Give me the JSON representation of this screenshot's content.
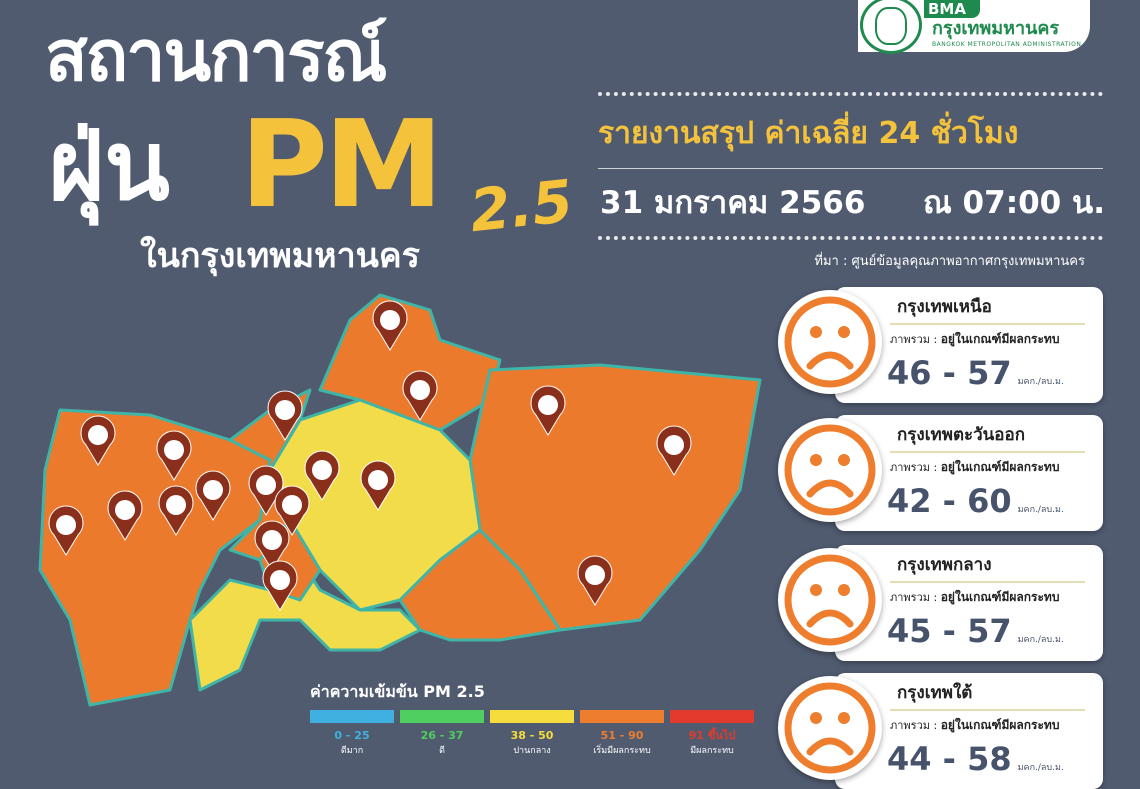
{
  "title": {
    "line1": "สถานการณ์",
    "line2": "ฝุ่น",
    "pm": "PM",
    "pm_sub": "2.5",
    "line3": "ในกรุงเทพมหานคร"
  },
  "logo": {
    "abbr": "BMA",
    "name_th": "กรุงเทพมหานคร",
    "name_en": "BANGKOK METROPOLITAN ADMINISTRATION"
  },
  "report": {
    "subtitle": "รายงานสรุป ค่าเฉลี่ย 24 ชั่วโมง",
    "date": "31 มกราคม 2566",
    "time": "ณ 07:00 น.",
    "source": "ที่มา : ศูนย์ข้อมูลคุณภาพอากาศกรุงเทพมหานคร"
  },
  "colors": {
    "background": "#505b70",
    "accent": "#f5c33b",
    "orange": "#ec7a2c",
    "yellow": "#f3dc4a",
    "border": "#3fb5a8"
  },
  "zones": [
    {
      "name": "กรุงเทพเหนือ",
      "status_label": "ภาพรวม :",
      "status": "อยู่ในเกณฑ์มีผลกระทบ",
      "value": "46 - 57",
      "unit": "มคก./ลบ.ม.",
      "face": "sad-face-icon"
    },
    {
      "name": "กรุงเทพตะวันออก",
      "status_label": "ภาพรวม :",
      "status": "อยู่ในเกณฑ์มีผลกระทบ",
      "value": "42 - 60",
      "unit": "มคก./ลบ.ม.",
      "face": "sad-face-icon"
    },
    {
      "name": "กรุงเทพกลาง",
      "status_label": "ภาพรวม :",
      "status": "อยู่ในเกณฑ์มีผลกระทบ",
      "value": "45 - 57",
      "unit": "มคก./ลบ.ม.",
      "face": "sad-face-icon"
    },
    {
      "name": "กรุงเทพใต้",
      "status_label": "ภาพรวม :",
      "status": "อยู่ในเกณฑ์มีผลกระทบ",
      "value": "44 - 58",
      "unit": "มคก./ลบ.ม.",
      "face": "sad-face-icon"
    }
  ],
  "legend": {
    "title": "ค่าความเข้มข้น PM 2.5",
    "items": [
      {
        "range": "0 - 25",
        "label": "ดีมาก",
        "color": "#3fb0e0"
      },
      {
        "range": "26 - 37",
        "label": "ดี",
        "color": "#4fcf5f"
      },
      {
        "range": "38 - 50",
        "label": "ปานกลาง",
        "color": "#f6dc3c"
      },
      {
        "range": "51 - 90",
        "label": "เริ่มมีผลกระทบ",
        "color": "#ee7d2d"
      },
      {
        "range": "91 ขึ้นไป",
        "label": "มีผลกระทบ",
        "color": "#e23a2c"
      }
    ]
  }
}
